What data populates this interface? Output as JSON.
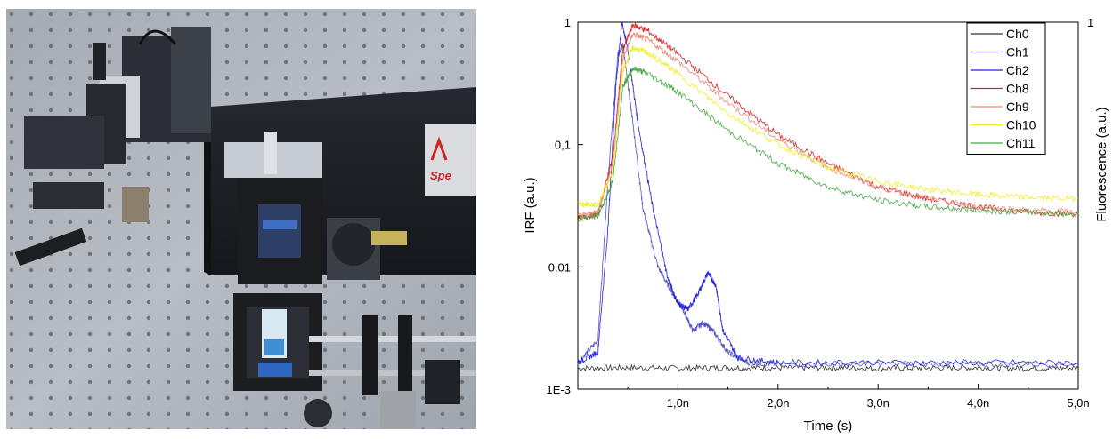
{
  "photo": {
    "icon": "lab-setup-photo",
    "logo_text": "Spe"
  },
  "chart_data": {
    "type": "line",
    "xlabel": "Time (s)",
    "ylabel": "IRF (a.u.)",
    "ylabel_right": "Fluorescence (a.u.)",
    "xlim": [
      0,
      5e-09
    ],
    "ylim": [
      0.001,
      1
    ],
    "yscale": "log",
    "x_ticks": [
      1e-09,
      2e-09,
      3e-09,
      4e-09,
      5e-09
    ],
    "x_tick_labels": [
      "1,0n",
      "2,0n",
      "3,0n",
      "4,0n",
      "5,0n"
    ],
    "y_ticks": [
      0.001,
      0.01,
      0.1,
      1
    ],
    "y_tick_labels": [
      "1E-3",
      "0,01",
      "0,1",
      "1"
    ],
    "y_right_tick_labels": [
      "1"
    ],
    "grid": false,
    "legend_position": "top-right",
    "series": [
      {
        "name": "Ch0",
        "color": "#333333",
        "x": [
          0,
          5e-10,
          1e-09,
          1.5e-09,
          2e-09,
          2.5e-09,
          3e-09,
          3.5e-09,
          4e-09,
          4.5e-09,
          5e-09
        ],
        "y": [
          0.00148,
          0.0015,
          0.00148,
          0.0015,
          0.00149,
          0.0015,
          0.00148,
          0.00149,
          0.0015,
          0.00148,
          0.00149
        ]
      },
      {
        "name": "Ch1",
        "color": "#5555cc",
        "x": [
          0,
          2e-10,
          3e-10,
          4e-10,
          4.5e-10,
          5.5e-10,
          6.5e-10,
          8e-10,
          9.5e-10,
          1.05e-09,
          1.15e-09,
          1.25e-09,
          1.35e-09,
          1.5e-09,
          1.7e-09,
          2e-09,
          3e-09,
          4e-09,
          5e-09
        ],
        "y": [
          0.00165,
          0.0025,
          0.05,
          0.55,
          0.65,
          0.15,
          0.03,
          0.01,
          0.006,
          0.0045,
          0.003,
          0.0035,
          0.003,
          0.002,
          0.00165,
          0.0016,
          0.00162,
          0.0016,
          0.0016
        ]
      },
      {
        "name": "Ch2",
        "color": "#2222dd",
        "x": [
          0,
          2e-10,
          3e-10,
          3.8e-10,
          4.4e-10,
          5e-10,
          6e-10,
          7.5e-10,
          9e-10,
          1e-09,
          1.1e-09,
          1.2e-09,
          1.3e-09,
          1.38e-09,
          1.45e-09,
          1.6e-09,
          2e-09,
          3e-09,
          4e-09,
          5e-09
        ],
        "y": [
          0.00165,
          0.002,
          0.02,
          0.3,
          1.0,
          0.6,
          0.15,
          0.03,
          0.008,
          0.005,
          0.0045,
          0.006,
          0.009,
          0.007,
          0.003,
          0.0018,
          0.00165,
          0.00165,
          0.00165,
          0.00165
        ]
      },
      {
        "name": "Ch8",
        "color": "#dd2222",
        "x": [
          0,
          2e-10,
          3.5e-10,
          4.5e-10,
          5.5e-10,
          7e-10,
          1e-09,
          1.5e-09,
          2e-09,
          2.5e-09,
          3e-09,
          3.5e-09,
          4e-09,
          4.5e-09,
          5e-09
        ],
        "y": [
          0.025,
          0.027,
          0.08,
          0.6,
          0.95,
          0.85,
          0.55,
          0.25,
          0.12,
          0.07,
          0.045,
          0.036,
          0.031,
          0.028,
          0.027
        ]
      },
      {
        "name": "Ch9",
        "color": "#ee8877",
        "x": [
          0,
          2e-10,
          3.5e-10,
          4.5e-10,
          5.5e-10,
          7e-10,
          1e-09,
          1.5e-09,
          2e-09,
          2.5e-09,
          3e-09,
          3.5e-09,
          4e-09,
          4.5e-09,
          5e-09
        ],
        "y": [
          0.026,
          0.028,
          0.07,
          0.5,
          0.8,
          0.72,
          0.48,
          0.22,
          0.11,
          0.065,
          0.045,
          0.036,
          0.031,
          0.029,
          0.028
        ]
      },
      {
        "name": "Ch10",
        "color": "#eeee22",
        "x": [
          0,
          2e-10,
          3.5e-10,
          4.5e-10,
          5.5e-10,
          7e-10,
          1e-09,
          1.5e-09,
          2e-09,
          2.5e-09,
          3e-09,
          3.5e-09,
          4e-09,
          4.5e-09,
          5e-09
        ],
        "y": [
          0.033,
          0.032,
          0.06,
          0.4,
          0.62,
          0.56,
          0.38,
          0.18,
          0.1,
          0.065,
          0.05,
          0.043,
          0.039,
          0.037,
          0.036
        ]
      },
      {
        "name": "Ch11",
        "color": "#44aa44",
        "x": [
          0,
          2e-10,
          3.5e-10,
          4.5e-10,
          5.5e-10,
          7e-10,
          1e-09,
          1.5e-09,
          2e-09,
          2.5e-09,
          3e-09,
          3.5e-09,
          4e-09,
          4.5e-09,
          5e-09
        ],
        "y": [
          0.025,
          0.026,
          0.05,
          0.3,
          0.42,
          0.38,
          0.27,
          0.13,
          0.07,
          0.045,
          0.035,
          0.031,
          0.029,
          0.028,
          0.027
        ]
      }
    ]
  }
}
